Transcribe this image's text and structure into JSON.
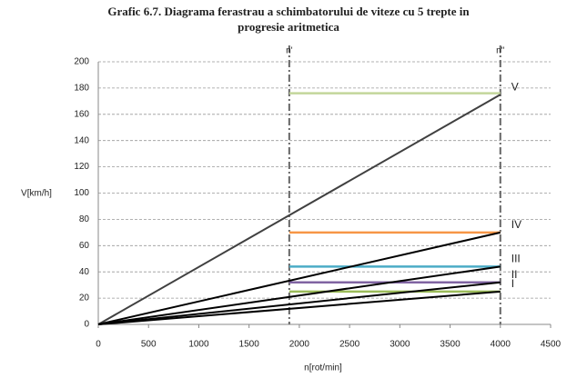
{
  "chart_data": {
    "type": "line",
    "title": [
      "Grafic 6.7. Diagrama ferastrau a schimbatorului de viteze cu 5 trepte in",
      "progresie aritmetica"
    ],
    "x_label": "n[rot/min]",
    "y_label": "V[km/h]",
    "xlim": [
      0,
      4500
    ],
    "xticks": [
      0,
      500,
      1000,
      1500,
      2000,
      2500,
      3000,
      3500,
      4000,
      4500
    ],
    "ylim": [
      0,
      200
    ],
    "yticks": [
      0,
      20,
      40,
      60,
      80,
      100,
      120,
      140,
      160,
      180,
      200
    ],
    "grid": true,
    "series": [
      {
        "name": "V",
        "color": "#404040",
        "x": [
          0,
          4000
        ],
        "values": [
          0,
          175
        ]
      },
      {
        "name": "IV",
        "color": "#000000",
        "x": [
          0,
          4000
        ],
        "values": [
          0,
          70
        ]
      },
      {
        "name": "III",
        "color": "#000000",
        "x": [
          0,
          4000
        ],
        "values": [
          0,
          44
        ]
      },
      {
        "name": "II",
        "color": "#000000",
        "x": [
          0,
          4000
        ],
        "values": [
          0,
          32
        ]
      },
      {
        "name": "I",
        "color": "#000000",
        "x": [
          0,
          4000
        ],
        "values": [
          0,
          25
        ]
      }
    ],
    "levels": [
      {
        "color": "#c3d69b",
        "x": [
          1900,
          4000
        ],
        "values": [
          176,
          176
        ]
      },
      {
        "color": "#f79646",
        "x": [
          1900,
          4000
        ],
        "values": [
          70,
          70
        ]
      },
      {
        "color": "#4bacc6",
        "x": [
          1900,
          4000
        ],
        "values": [
          44,
          44
        ]
      },
      {
        "color": "#8064a2",
        "x": [
          1900,
          4000
        ],
        "values": [
          32,
          32
        ]
      },
      {
        "color": "#9bbb59",
        "x": [
          1900,
          4000
        ],
        "values": [
          25,
          25
        ]
      }
    ],
    "vlines": [
      {
        "x": 1900,
        "label": "n'"
      },
      {
        "x": 4000,
        "label": "n''"
      }
    ]
  }
}
